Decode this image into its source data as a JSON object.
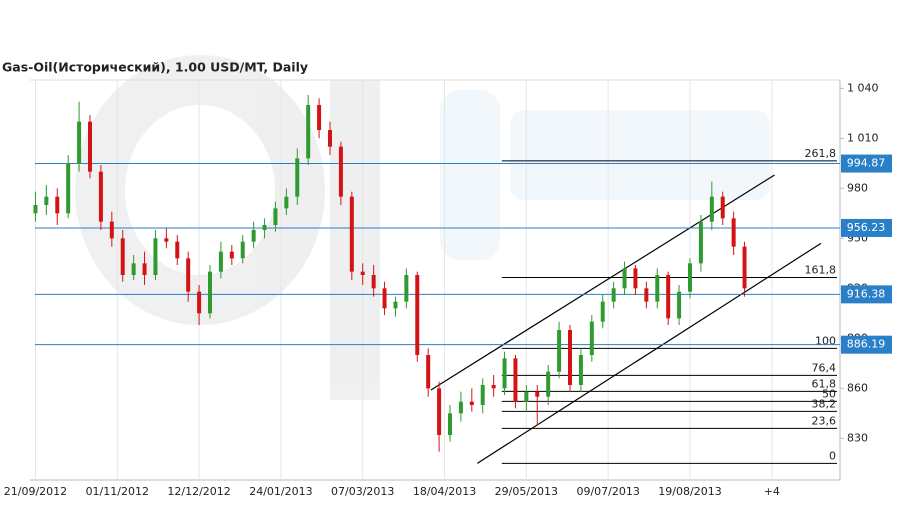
{
  "chart_data": {
    "type": "candlestick",
    "title": "Gas-Oil(Исторический), 1.00 USD/MT, Daily",
    "up_color": "#2f9a2f",
    "down_color": "#d41414",
    "x": [
      0,
      4,
      8,
      12,
      16,
      20,
      24,
      28,
      32,
      36,
      40,
      44,
      48,
      52,
      56,
      60,
      64,
      68,
      72,
      76,
      80,
      84,
      88,
      92,
      96,
      100,
      104,
      108,
      112,
      116,
      120,
      124,
      128,
      132,
      136,
      140,
      144,
      148,
      152,
      156,
      160,
      164,
      168,
      172,
      176,
      180,
      184,
      188,
      192,
      196,
      200,
      204,
      208,
      212,
      216,
      220,
      224,
      228,
      232,
      236,
      240,
      244,
      248,
      252,
      256,
      260
    ],
    "open": [
      965,
      970,
      975,
      965,
      995,
      1020,
      990,
      960,
      950,
      928,
      935,
      928,
      950,
      948,
      938,
      918,
      905,
      930,
      942,
      938,
      948,
      955,
      958,
      968,
      975,
      998,
      1030,
      1015,
      1005,
      975,
      930,
      928,
      920,
      908,
      912,
      928,
      880,
      860,
      832,
      845,
      852,
      850,
      862,
      860,
      878,
      852,
      858,
      855,
      870,
      895,
      862,
      880,
      900,
      912,
      920,
      932,
      920,
      912,
      928,
      902,
      918,
      935,
      960,
      975,
      962,
      945
    ],
    "high": [
      978,
      982,
      980,
      1000,
      1032,
      1024,
      994,
      966,
      955,
      940,
      942,
      955,
      956,
      952,
      942,
      922,
      934,
      948,
      946,
      952,
      960,
      962,
      972,
      980,
      1004,
      1036,
      1034,
      1020,
      1008,
      978,
      935,
      934,
      924,
      915,
      932,
      930,
      884,
      864,
      850,
      858,
      860,
      866,
      868,
      882,
      880,
      862,
      862,
      874,
      900,
      898,
      884,
      904,
      916,
      924,
      936,
      934,
      924,
      932,
      930,
      922,
      938,
      964,
      984,
      978,
      966,
      948
    ],
    "low": [
      960,
      964,
      958,
      962,
      990,
      986,
      955,
      945,
      924,
      925,
      922,
      925,
      944,
      934,
      912,
      898,
      902,
      926,
      934,
      935,
      944,
      950,
      954,
      964,
      970,
      994,
      1010,
      1000,
      970,
      925,
      922,
      915,
      904,
      903,
      908,
      876,
      855,
      822,
      828,
      840,
      846,
      845,
      855,
      856,
      848,
      846,
      838,
      850,
      866,
      858,
      858,
      876,
      896,
      908,
      916,
      916,
      908,
      908,
      898,
      898,
      914,
      930,
      955,
      958,
      940,
      915
    ],
    "close": [
      970,
      975,
      965,
      995,
      1020,
      990,
      960,
      950,
      928,
      935,
      928,
      950,
      948,
      938,
      918,
      905,
      930,
      942,
      938,
      948,
      955,
      958,
      968,
      975,
      998,
      1030,
      1015,
      1005,
      975,
      930,
      928,
      920,
      908,
      912,
      928,
      880,
      860,
      832,
      845,
      852,
      850,
      862,
      860,
      878,
      852,
      858,
      855,
      870,
      895,
      862,
      880,
      900,
      912,
      920,
      932,
      920,
      912,
      928,
      902,
      918,
      935,
      960,
      975,
      962,
      945,
      920
    ],
    "xlim": [
      -2,
      295
    ],
    "ylim": [
      805,
      1045
    ],
    "xticks": [
      {
        "value": 0,
        "label": "21/09/2012"
      },
      {
        "value": 30,
        "label": "01/11/2012"
      },
      {
        "value": 60,
        "label": "12/12/2012"
      },
      {
        "value": 90,
        "label": "24/01/2013"
      },
      {
        "value": 120,
        "label": "07/03/2013"
      },
      {
        "value": 150,
        "label": "18/04/2013"
      },
      {
        "value": 180,
        "label": "29/05/2013"
      },
      {
        "value": 210,
        "label": "09/07/2013"
      },
      {
        "value": 240,
        "label": "19/08/2013"
      },
      {
        "value": 270,
        "label": "+4"
      }
    ],
    "yticks": [
      830,
      860,
      890,
      920,
      950,
      980,
      {
        "value": 1010,
        "label": "1 010"
      },
      {
        "value": 1040,
        "label": "1 040"
      }
    ],
    "levels": [
      994.87,
      956.23,
      916.38,
      886.19
    ],
    "level_color": "#2a7fc9",
    "fibonacci": {
      "start": 171,
      "ratios": [
        {
          "value": 261.8,
          "label": "261,8"
        },
        {
          "value": 161.8,
          "label": "161,8"
        },
        100,
        {
          "value": 76.4,
          "label": "76,4"
        },
        {
          "value": 61.8,
          "label": "61,8"
        },
        50,
        {
          "value": 38.2,
          "label": "38,2"
        },
        {
          "value": 23.6,
          "label": "23,6"
        },
        0
      ],
      "prices": [
        996.5,
        926.5,
        884,
        867.8,
        858.2,
        852.2,
        846.2,
        836,
        815
      ]
    },
    "trendlines": [
      {
        "x": [
          145,
          271
        ],
        "y": [
          859,
          988
        ]
      },
      {
        "x": [
          162,
          288
        ],
        "y": [
          815,
          947
        ]
      }
    ]
  }
}
